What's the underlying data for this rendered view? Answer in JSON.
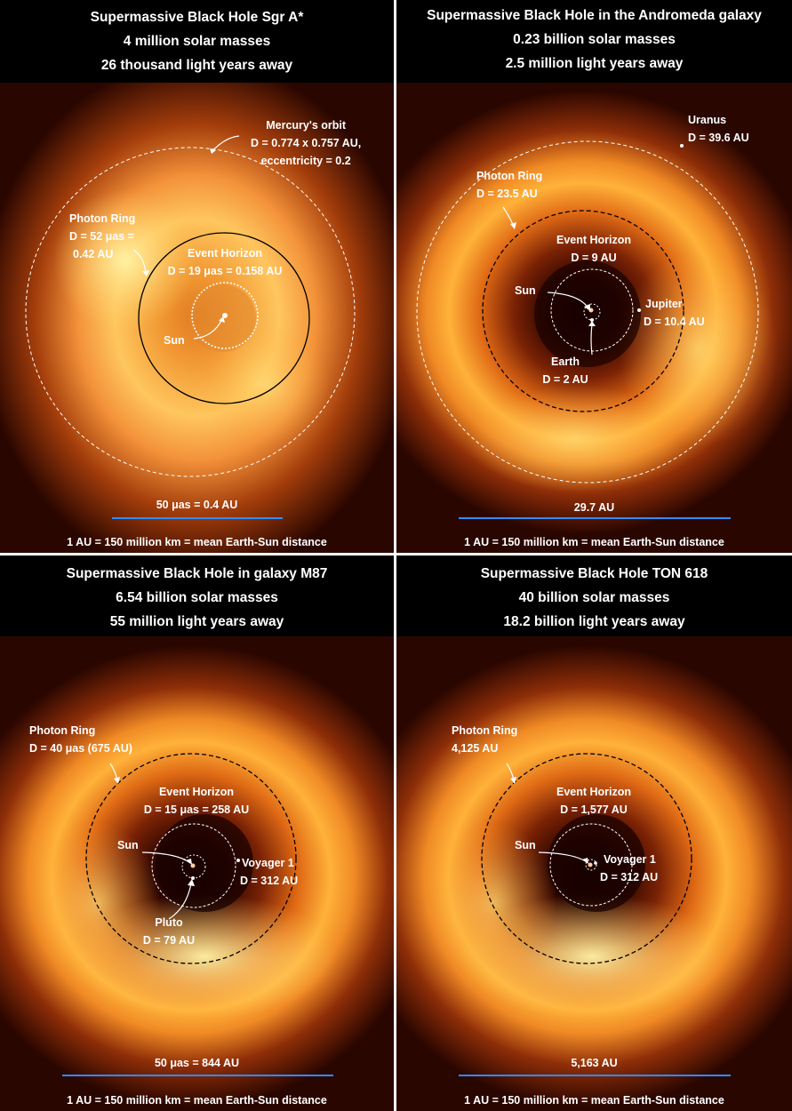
{
  "panels": [
    {
      "title": [
        "Supermassive Black Hole Sgr A*",
        "4 million solar masses",
        "26 thousand light years away"
      ],
      "labels": {
        "mercury": [
          "Mercury's orbit",
          "D = 0.774 x 0.757 AU,",
          "eccentricity = 0.2"
        ],
        "photon_ring": [
          "Photon Ring",
          "D = 52 μas  =",
          "0.42 AU"
        ],
        "event_horizon": [
          "Event Horizon",
          "D = 19 μas = 0.158 AU"
        ],
        "sun": "Sun"
      },
      "scale_text": "50 μas = 0.4 AU",
      "footer": "1 AU = 150 million km = mean Earth-Sun distance"
    },
    {
      "title": [
        "Supermassive Black Hole in the Andromeda galaxy",
        "0.23 billion solar masses",
        "2.5 million light years away"
      ],
      "labels": {
        "uranus": [
          "Uranus",
          "D = 39.6 AU"
        ],
        "photon_ring": [
          "Photon  Ring",
          "D = 23.5 AU"
        ],
        "event_horizon": [
          "Event Horizon",
          "D = 9 AU"
        ],
        "sun": "Sun",
        "jupiter": [
          "Jupiter",
          "D = 10.4 AU"
        ],
        "earth": [
          "Earth",
          "D = 2 AU"
        ]
      },
      "scale_text": "29.7 AU",
      "footer": "1 AU = 150 million km = mean Earth-Sun distance"
    },
    {
      "title": [
        "Supermassive Black Hole in galaxy M87",
        "6.54 billion solar masses",
        "55 million light years away"
      ],
      "labels": {
        "photon_ring": [
          "Photon  Ring",
          "D = 40 μas (675 AU)"
        ],
        "event_horizon": [
          "Event Horizon",
          "D = 15 μas = 258 AU"
        ],
        "sun": "Sun",
        "voyager": [
          "Voyager 1",
          "D = 312 AU"
        ],
        "pluto": [
          "Pluto",
          "D = 79 AU"
        ]
      },
      "scale_text": "50 μas = 844 AU",
      "footer": "1 AU = 150 million km = mean Earth-Sun distance"
    },
    {
      "title": [
        "Supermassive Black Hole TON 618",
        "40 billion solar masses",
        "18.2 billion light years away"
      ],
      "labels": {
        "photon_ring": [
          "Photon  Ring",
          "4,125 AU"
        ],
        "event_horizon": [
          "Event Horizon",
          "D = 1,577 AU"
        ],
        "sun": "Sun",
        "voyager": [
          "Voyager 1",
          "D = 312 AU"
        ]
      },
      "scale_text": "5,163 AU",
      "footer": "1 AU = 150 million km = mean Earth-Sun distance"
    }
  ],
  "colors": {
    "scale_bar": "#2f8dff",
    "background": "#000000"
  }
}
